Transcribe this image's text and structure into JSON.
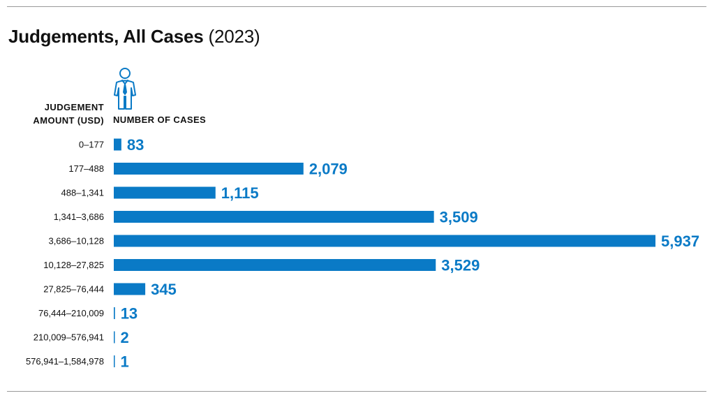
{
  "title": {
    "main": "Judgements, All Cases",
    "year": "(2023)"
  },
  "headers": {
    "category_line1": "JUDGEMENT",
    "category_line2": "AMOUNT (USD)",
    "value": "NUMBER OF CASES"
  },
  "icon": "person-icon",
  "colors": {
    "bar": "#0a7ac6",
    "value_text": "#0a7ac6",
    "rule": "#9a9a9a"
  },
  "chart_data": {
    "type": "bar",
    "orientation": "horizontal",
    "title": "Judgements, All Cases (2023)",
    "xlabel": "NUMBER OF CASES",
    "ylabel": "JUDGEMENT AMOUNT (USD)",
    "categories": [
      "0–177",
      "177–488",
      "488–1,341",
      "1,341–3,686",
      "3,686–10,128",
      "10,128–27,825",
      "27,825–76,444",
      "76,444–210,009",
      "210,009–576,941",
      "576,941–1,584,978"
    ],
    "values": [
      83,
      2079,
      1115,
      3509,
      5937,
      3529,
      345,
      13,
      2,
      1
    ],
    "value_labels": [
      "83",
      "2,079",
      "1,115",
      "3,509",
      "5,937",
      "3,529",
      "345",
      "13",
      "2",
      "1"
    ],
    "xlim": [
      0,
      5937
    ],
    "grid": false,
    "legend": "none"
  }
}
